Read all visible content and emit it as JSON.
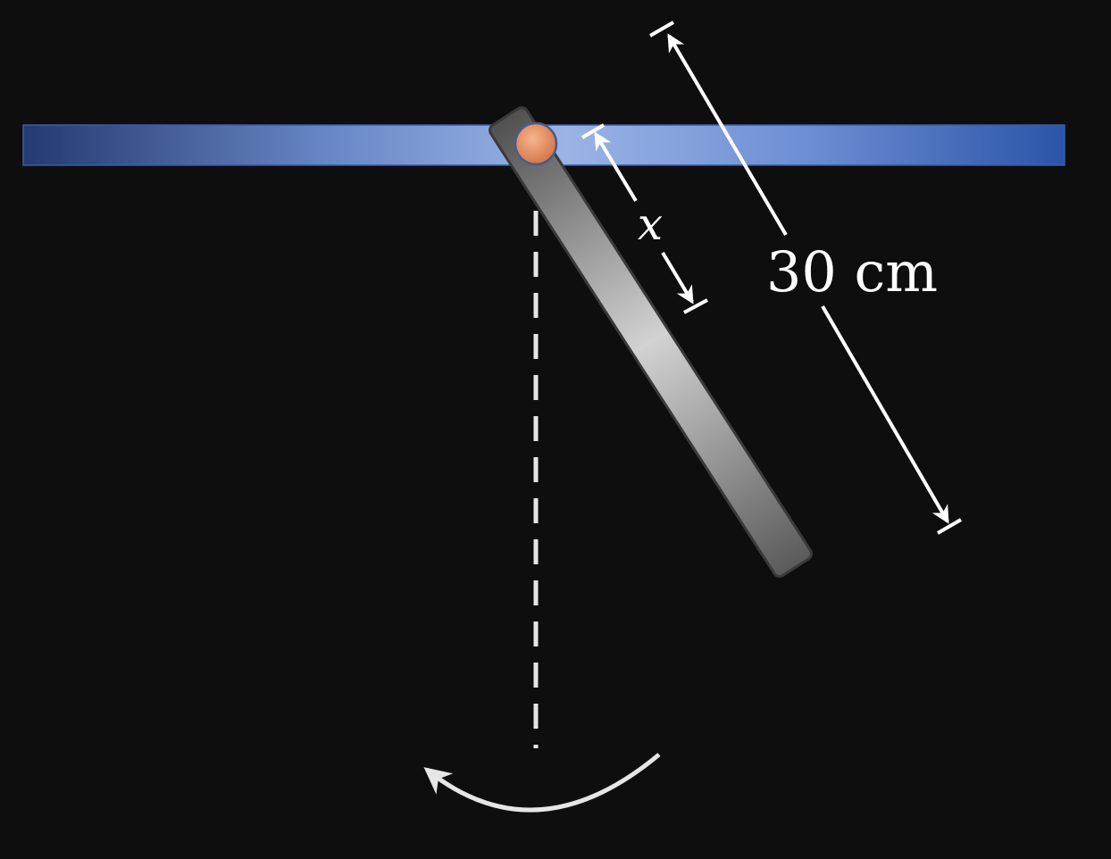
{
  "diagram": {
    "type": "physical-pendulum",
    "labels": {
      "pivot_distance": "x",
      "rod_length": "30 cm"
    },
    "colors": {
      "background": "#0e0e0e",
      "support_bar": "#5a7fc8",
      "rod": "#9a9a9a",
      "pivot": "#e8926a",
      "annotation": "#ffffff",
      "reference_line": "#e6e6e6"
    },
    "icons": {
      "rotation": "curved-arrow-icon"
    }
  }
}
